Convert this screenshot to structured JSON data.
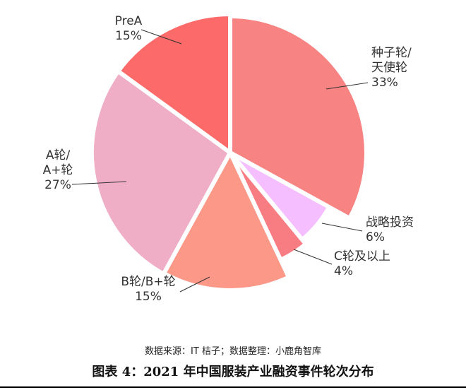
{
  "chart_data": {
    "type": "pie",
    "slices": [
      {
        "label_lines": [
          "种子轮/",
          "天使轮"
        ],
        "pct_label": "33%",
        "value": 33,
        "color": "#f88383"
      },
      {
        "label_lines": [
          "战略投资"
        ],
        "pct_label": "6%",
        "value": 6,
        "color": "#f4beff"
      },
      {
        "label_lines": [
          "C轮及以上"
        ],
        "pct_label": "4%",
        "value": 4,
        "color": "#f87d83"
      },
      {
        "label_lines": [
          "B轮/B+轮"
        ],
        "pct_label": "15%",
        "value": 15,
        "color": "#fc9888"
      },
      {
        "label_lines": [
          "A轮/",
          "A+轮"
        ],
        "pct_label": "27%",
        "value": 27,
        "color": "#efaec6"
      },
      {
        "label_lines": [
          "PreA"
        ],
        "pct_label": "15%",
        "value": 15,
        "color": "#fc6a69"
      }
    ]
  },
  "source_note": "数据来源：IT 桔子；数据整理：小鹿角智库",
  "figure_caption": "图表 4：2021 年中国服装产业融资事件轮次分布"
}
